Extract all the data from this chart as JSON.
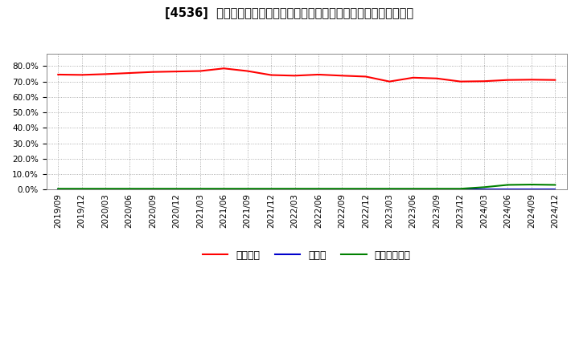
{
  "title": "[4536]  自己資本、のれん、繰延税金資産の総資産に対する比率の推移",
  "x_labels": [
    "2019/09",
    "2019/12",
    "2020/03",
    "2020/06",
    "2020/09",
    "2020/12",
    "2021/03",
    "2021/06",
    "2021/09",
    "2021/12",
    "2022/03",
    "2022/06",
    "2022/09",
    "2022/12",
    "2023/03",
    "2023/06",
    "2023/09",
    "2023/12",
    "2024/03",
    "2024/06",
    "2024/09",
    "2024/12"
  ],
  "equity_ratio": [
    74.5,
    74.3,
    74.8,
    75.5,
    76.2,
    76.5,
    76.8,
    78.5,
    76.8,
    74.2,
    73.8,
    74.5,
    73.8,
    73.2,
    70.0,
    72.5,
    72.0,
    70.0,
    70.2,
    71.0,
    71.2,
    71.0
  ],
  "noren_ratio": [
    0.3,
    0.3,
    0.3,
    0.3,
    0.3,
    0.3,
    0.3,
    0.3,
    0.3,
    0.3,
    0.3,
    0.3,
    0.3,
    0.3,
    0.3,
    0.3,
    0.3,
    0.3,
    0.3,
    0.3,
    0.3,
    0.3
  ],
  "deferred_tax_ratio": [
    0.5,
    0.5,
    0.5,
    0.5,
    0.5,
    0.5,
    0.5,
    0.5,
    0.5,
    0.5,
    0.5,
    0.5,
    0.5,
    0.5,
    0.5,
    0.5,
    0.5,
    0.5,
    1.5,
    3.0,
    3.2,
    3.0
  ],
  "equity_color": "#ff0000",
  "noren_color": "#0000cc",
  "deferred_tax_color": "#008000",
  "ylim": [
    0.0,
    88.0
  ],
  "yticks": [
    0.0,
    10.0,
    20.0,
    30.0,
    40.0,
    50.0,
    60.0,
    70.0,
    80.0
  ],
  "legend_labels": [
    "自己資本",
    "のれん",
    "繰延税金資産"
  ],
  "bg_color": "#ffffff",
  "plot_bg_color": "#ffffff",
  "grid_color": "#999999",
  "title_fontsize": 10.5,
  "tick_fontsize": 7.5,
  "legend_fontsize": 9
}
